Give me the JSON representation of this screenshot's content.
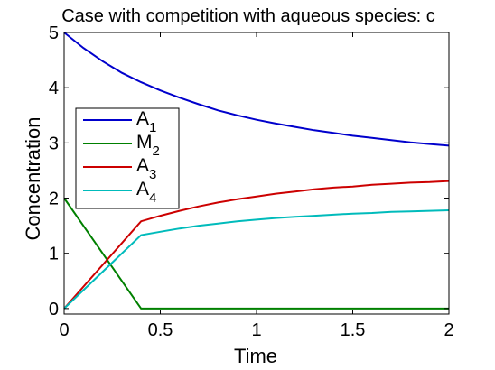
{
  "chart_data": {
    "type": "line",
    "title": "Case with competition with aqueous species: c",
    "xlabel": "Time",
    "ylabel": "Concentration",
    "xlim": [
      0,
      2
    ],
    "ylim": [
      -0.1,
      5
    ],
    "xticks": [
      0,
      0.5,
      1,
      1.5,
      2
    ],
    "xtick_labels": [
      "0",
      "0.5",
      "1",
      "1.5",
      "2"
    ],
    "yticks": [
      0,
      1,
      2,
      3,
      4,
      5
    ],
    "ytick_labels": [
      "0",
      "1",
      "2",
      "3",
      "4",
      "5"
    ],
    "grid": false,
    "legend_position": "center-left",
    "series": [
      {
        "name": "A1",
        "label_main": "A",
        "label_sub": "1",
        "color": "#0000cc",
        "x": [
          0,
          0.1,
          0.2,
          0.3,
          0.4,
          0.5,
          0.6,
          0.7,
          0.8,
          0.9,
          1.0,
          1.1,
          1.2,
          1.3,
          1.4,
          1.5,
          1.6,
          1.7,
          1.8,
          1.9,
          2.0
        ],
        "y": [
          5.0,
          4.72,
          4.48,
          4.27,
          4.1,
          3.95,
          3.82,
          3.7,
          3.59,
          3.5,
          3.42,
          3.35,
          3.29,
          3.23,
          3.18,
          3.13,
          3.09,
          3.05,
          3.01,
          2.98,
          2.95
        ]
      },
      {
        "name": "M2",
        "label_main": "M",
        "label_sub": "2",
        "color": "#008000",
        "x": [
          0,
          0.4,
          2.0
        ],
        "y": [
          2.0,
          0.0,
          0.0
        ]
      },
      {
        "name": "A3",
        "label_main": "A",
        "label_sub": "3",
        "color": "#cc0000",
        "x": [
          0,
          0.4,
          0.5,
          0.6,
          0.7,
          0.8,
          0.9,
          1.0,
          1.1,
          1.2,
          1.3,
          1.4,
          1.5,
          1.6,
          1.7,
          1.8,
          1.9,
          2.0
        ],
        "y": [
          0.0,
          1.58,
          1.68,
          1.77,
          1.85,
          1.92,
          1.98,
          2.03,
          2.08,
          2.12,
          2.16,
          2.19,
          2.21,
          2.24,
          2.26,
          2.28,
          2.29,
          2.31
        ]
      },
      {
        "name": "A4",
        "label_main": "A",
        "label_sub": "4",
        "color": "#00bbbb",
        "x": [
          0,
          0.4,
          0.5,
          0.6,
          0.7,
          0.8,
          0.9,
          1.0,
          1.1,
          1.2,
          1.3,
          1.4,
          1.5,
          1.6,
          1.7,
          1.8,
          1.9,
          2.0
        ],
        "y": [
          0.0,
          1.33,
          1.39,
          1.45,
          1.5,
          1.54,
          1.58,
          1.61,
          1.64,
          1.66,
          1.68,
          1.7,
          1.72,
          1.73,
          1.75,
          1.76,
          1.77,
          1.78
        ]
      }
    ]
  }
}
